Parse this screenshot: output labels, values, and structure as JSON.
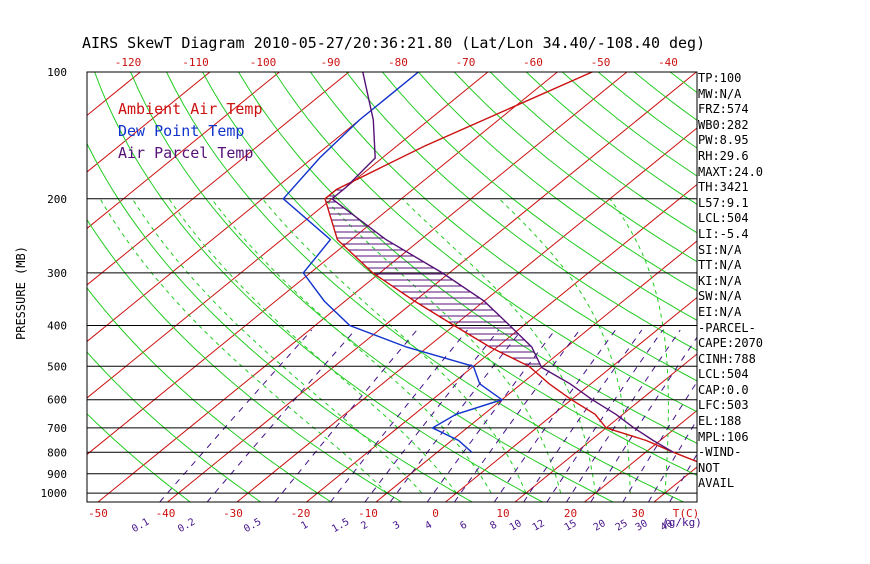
{
  "title": "AIRS SkewT Diagram 2010-05-27/20:36:21.80 (Lat/Lon 34.40/-108.40 deg)",
  "legend": {
    "ambient": "Ambient Air Temp",
    "dewpoint": "Dew Point Temp",
    "parcel": "Air Parcel Temp"
  },
  "colors": {
    "ambient": "#cc1111",
    "dewpoint": "#1133cc",
    "parcel": "#551177",
    "dry_adiabat": "#22cc22",
    "moist_adiabat": "#22cc22",
    "mixing_ratio": "#441188",
    "isotherm": "#cc1111",
    "isobar": "#000000"
  },
  "indices": [
    "TP:100",
    "MW:N/A",
    "FRZ:574",
    "WB0:282",
    "PW:8.95",
    "RH:29.6",
    "MAXT:24.0",
    "TH:3421",
    "L57:9.1",
    "LCL:504",
    "LI:-5.4",
    "SI:N/A",
    "TT:N/A",
    "KI:N/A",
    "SW:N/A",
    "EI:N/A",
    "-PARCEL-",
    "CAPE:2070",
    "CINH:788",
    "LCL:504",
    "CAP:0.0",
    "LFC:503",
    "EL:188",
    "MPL:106",
    "-WIND-",
    "NOT",
    "AVAIL"
  ],
  "chart_data": {
    "type": "line",
    "title": "AIRS SkewT Diagram 2010-05-27/20:36:21.80 (Lat/Lon 34.40/-108.40 deg)",
    "ylabel": "PRESSURE (MB)",
    "xlabel": "T(C)",
    "mixing_ratio_label": "(g/kg)",
    "y_scale": "log",
    "y_reversed": true,
    "pressure_ticks": [
      100,
      200,
      300,
      400,
      500,
      600,
      700,
      800,
      900,
      1000
    ],
    "top_temp_ticks": [
      -120,
      -110,
      -100,
      -90,
      -80,
      -70,
      -60,
      -50,
      -40
    ],
    "bottom_temp_ticks": [
      -50,
      -40,
      -30,
      -20,
      -10,
      0,
      10,
      20,
      30
    ],
    "mixing_ratio_ticks": [
      "0.1",
      "0.2",
      "0.5",
      "1",
      "1.5",
      "2",
      "3",
      "4",
      "6",
      "8",
      "10",
      "12",
      "15",
      "20",
      "25",
      "30",
      "40"
    ],
    "series": [
      {
        "key": "ambient",
        "name": "Ambient Air Temp",
        "pressure": [
          100,
          150,
          190,
          200,
          250,
          300,
          350,
          400,
          450,
          500,
          550,
          600,
          650,
          700,
          750,
          800,
          850
        ],
        "temperature": [
          -55,
          -66,
          -71,
          -71,
          -62,
          -51,
          -40,
          -30,
          -21,
          -12,
          -6,
          0,
          6,
          10,
          18,
          24,
          30
        ]
      },
      {
        "key": "dewpoint",
        "name": "Dew Point Temp",
        "pressure": [
          100,
          130,
          160,
          200,
          250,
          300,
          350,
          400,
          450,
          500,
          550,
          600,
          650,
          700,
          750,
          800
        ],
        "temperature": [
          -80,
          -80,
          -79,
          -77,
          -63,
          -61,
          -53,
          -45,
          -33,
          -20,
          -16,
          -10,
          -14,
          -15,
          -9,
          -5
        ]
      },
      {
        "key": "parcel",
        "name": "Air Parcel Temp",
        "pressure": [
          100,
          130,
          160,
          188,
          200,
          250,
          300,
          350,
          400,
          450,
          503,
          550,
          600,
          650,
          700,
          750,
          800
        ],
        "temperature": [
          -88,
          -78,
          -71,
          -70,
          -70,
          -55,
          -41,
          -30,
          -22,
          -15,
          -10,
          -3,
          3,
          9,
          14,
          19,
          24
        ]
      }
    ]
  }
}
